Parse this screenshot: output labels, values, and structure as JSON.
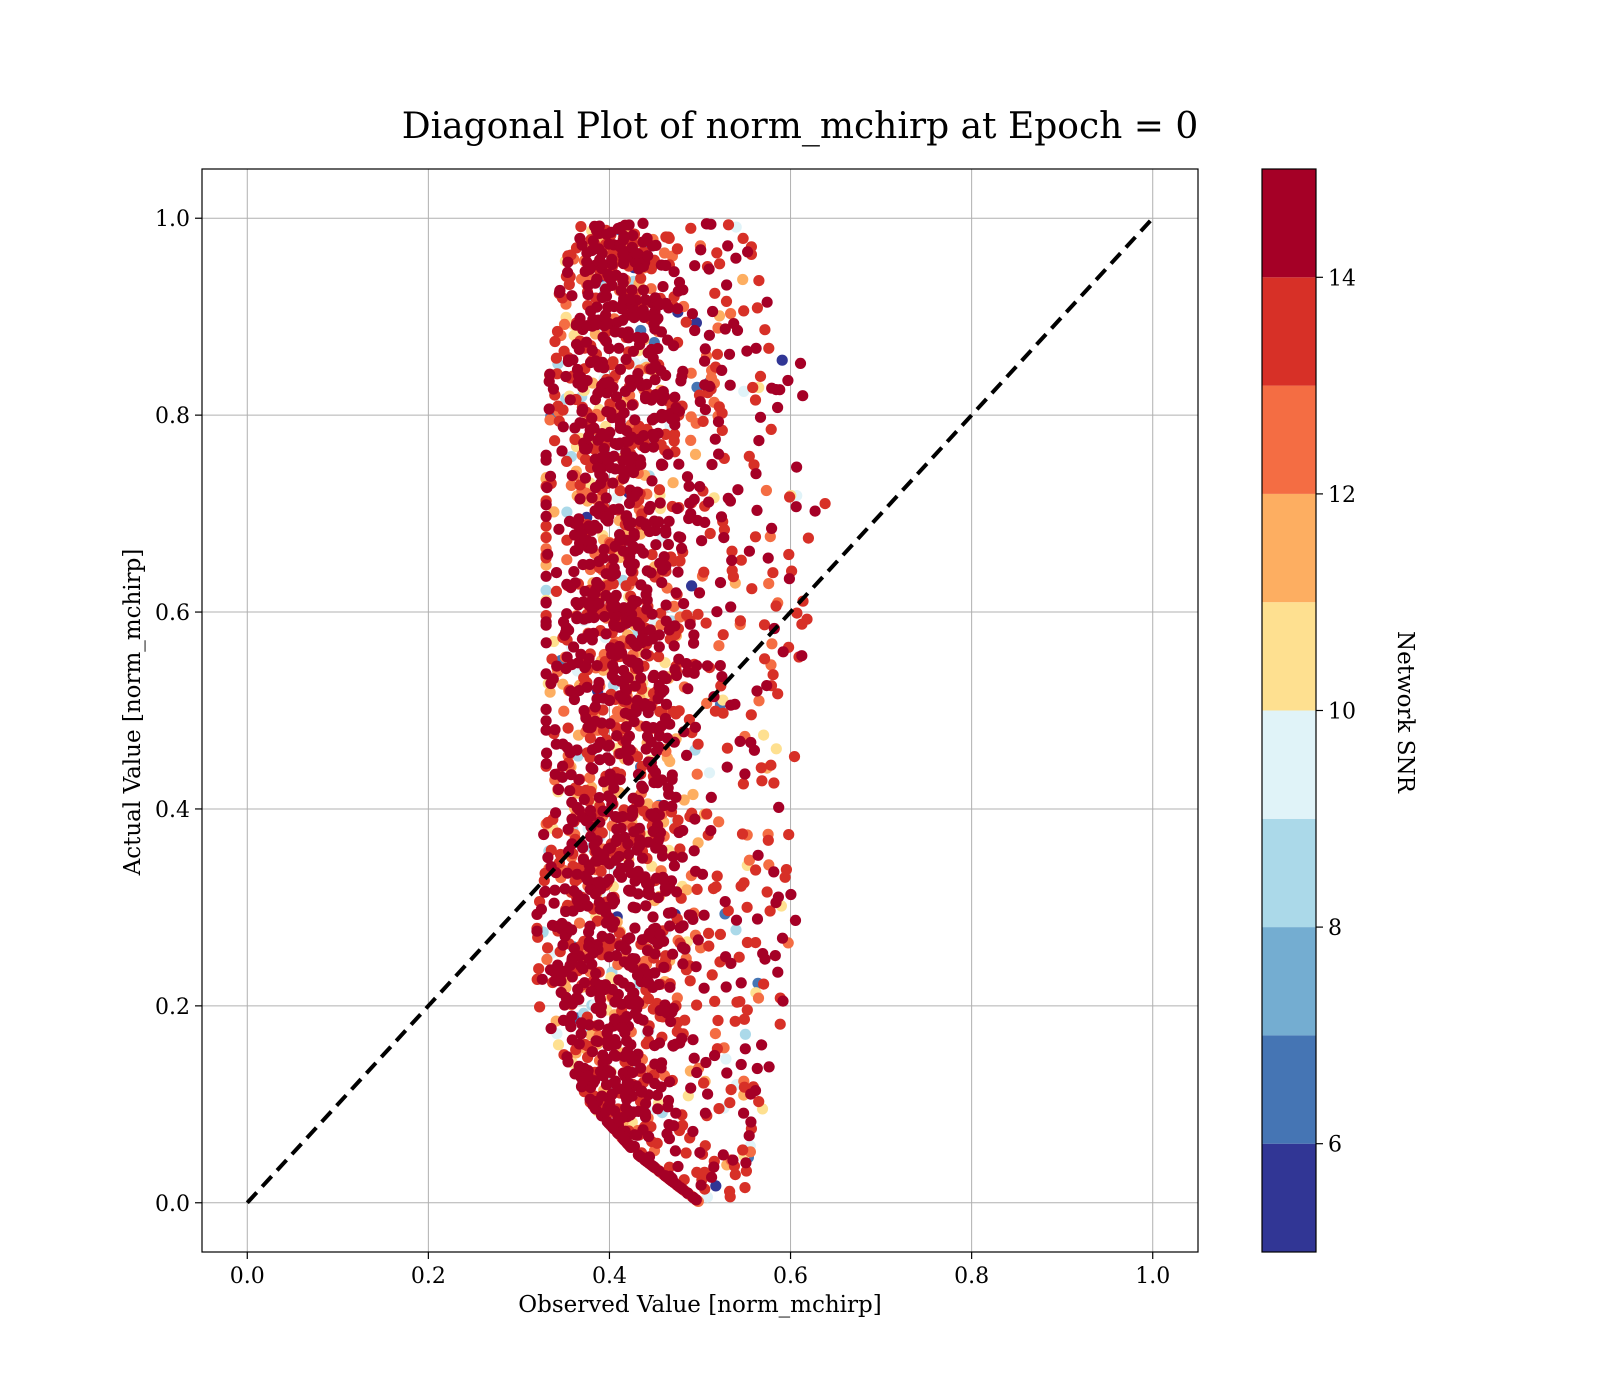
{
  "chart_data": {
    "type": "scatter",
    "title": "Diagonal Plot of norm_mchirp at Epoch = 0",
    "xlabel": "Observed Value [norm_mchirp]",
    "ylabel": "Actual Value [norm_mchirp]",
    "xlim": [
      -0.05,
      1.05
    ],
    "ylim": [
      -0.05,
      1.05
    ],
    "xticks": [
      "0.0",
      "0.2",
      "0.4",
      "0.6",
      "0.8",
      "1.0"
    ],
    "yticks": [
      "0.0",
      "0.2",
      "0.4",
      "0.6",
      "0.8",
      "1.0"
    ],
    "grid": true,
    "reference_line": {
      "style": "dashed",
      "color": "#000000",
      "x": [
        0.0,
        1.0
      ],
      "y": [
        0.0,
        1.0
      ]
    },
    "colorbar": {
      "label": "Network SNR",
      "range": [
        5,
        15
      ],
      "ticks": [
        "6",
        "8",
        "10",
        "12",
        "14"
      ],
      "tick_values": [
        6,
        8,
        10,
        12,
        14
      ],
      "colors": [
        "#313695",
        "#4575b4",
        "#74add1",
        "#abd9e9",
        "#e0f3f8",
        "#fee090",
        "#fdae61",
        "#f46d43",
        "#d73027",
        "#a50026"
      ]
    },
    "point_cloud": {
      "description_points": "approximate density envelope of the scatter",
      "envelope": [
        {
          "y": 0.0,
          "x_min": 0.5,
          "x_max": 0.55
        },
        {
          "y": 0.05,
          "x_min": 0.43,
          "x_max": 0.56
        },
        {
          "y": 0.1,
          "x_min": 0.38,
          "x_max": 0.57
        },
        {
          "y": 0.2,
          "x_min": 0.32,
          "x_max": 0.6
        },
        {
          "y": 0.3,
          "x_min": 0.32,
          "x_max": 0.61
        },
        {
          "y": 0.4,
          "x_min": 0.33,
          "x_max": 0.61
        },
        {
          "y": 0.5,
          "x_min": 0.33,
          "x_max": 0.61
        },
        {
          "y": 0.6,
          "x_min": 0.33,
          "x_max": 0.62
        },
        {
          "y": 0.7,
          "x_min": 0.33,
          "x_max": 0.64
        },
        {
          "y": 0.8,
          "x_min": 0.33,
          "x_max": 0.63
        },
        {
          "y": 0.9,
          "x_min": 0.34,
          "x_max": 0.6
        },
        {
          "y": 1.0,
          "x_min": 0.36,
          "x_max": 0.54
        }
      ],
      "dense_center_x": 0.41,
      "dominant_snr": 15
    }
  }
}
